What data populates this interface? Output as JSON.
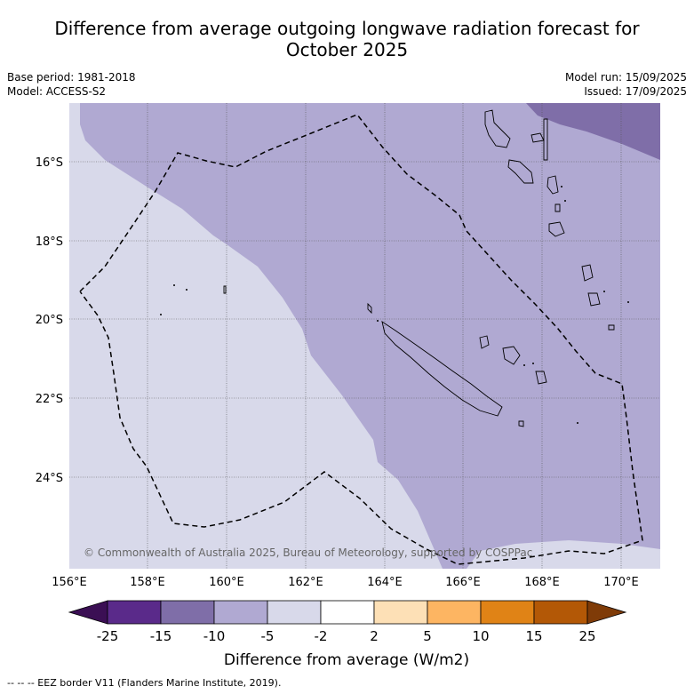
{
  "title_line1": "Difference from average outgoing longwave radiation forecast for",
  "title_line2": "October 2025",
  "base_period": "Base period: 1981-2018",
  "model": "Model: ACCESS-S2",
  "model_run": "Model run: 15/09/2025",
  "issued": "Issued: 17/09/2025",
  "copyright": "© Commonwealth of Australia 2025, Bureau of Meteorology, supported by COSPPac",
  "footer_note": "--  --  -- EEZ border V11 (Flanders Marine Institute, 2019).",
  "colors": {
    "lt_neg2_to_neg5": "#d8d9ea",
    "lt_neg5_to_neg10": "#b0a9d2",
    "lt_neg10_to_neg15": "#7f6ea8",
    "land_outline": "#000000"
  },
  "axis": {
    "lon_labels": [
      "156°E",
      "158°E",
      "160°E",
      "162°E",
      "164°E",
      "166°E",
      "168°E",
      "170°E"
    ],
    "lat_labels": [
      "16°S",
      "18°S",
      "20°S",
      "22°S",
      "24°S"
    ]
  },
  "colorbar": {
    "label": "Difference from average (W/m2)",
    "ticks": [
      "-25",
      "-15",
      "-10",
      "-5",
      "-2",
      "2",
      "5",
      "10",
      "15",
      "25"
    ],
    "colors": [
      "#3b0f54",
      "#5a2a8a",
      "#7f6ea8",
      "#b0a9d2",
      "#d8d9ea",
      "#ffffff",
      "#fde0b6",
      "#fdb562",
      "#e08316",
      "#b35806",
      "#7f3b08"
    ]
  }
}
